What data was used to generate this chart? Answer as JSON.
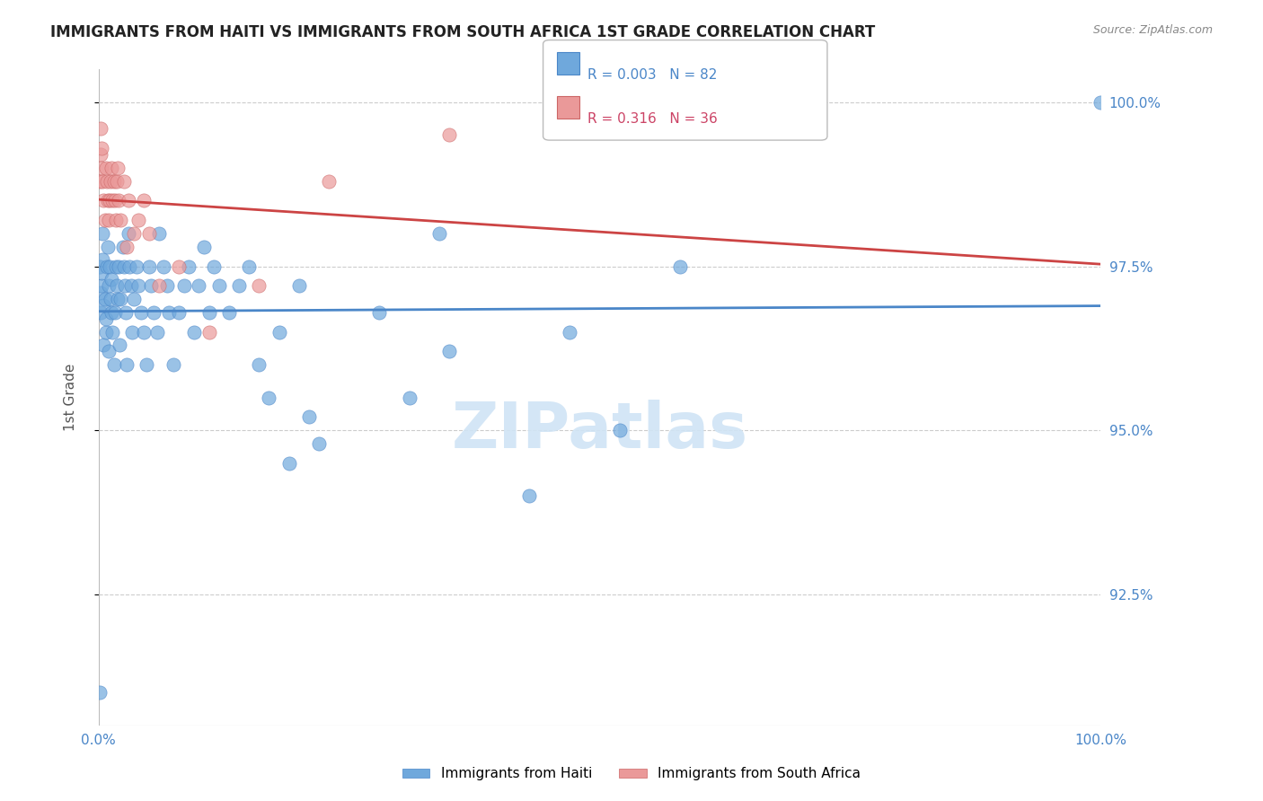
{
  "title": "IMMIGRANTS FROM HAITI VS IMMIGRANTS FROM SOUTH AFRICA 1ST GRADE CORRELATION CHART",
  "source_text": "Source: ZipAtlas.com",
  "ylabel": "1st Grade",
  "x_tick_labels": [
    "0.0%",
    "100.0%"
  ],
  "y_tick_labels_right": [
    "100.0%",
    "97.5%",
    "95.0%",
    "92.5%"
  ],
  "y_tick_values_right": [
    1.0,
    0.975,
    0.95,
    0.925
  ],
  "legend_haiti": "Immigrants from Haiti",
  "legend_sa": "Immigrants from South Africa",
  "r_haiti": "0.003",
  "n_haiti": "82",
  "r_sa": "0.316",
  "n_sa": "36",
  "xlim": [
    0.0,
    1.0
  ],
  "ylim": [
    0.905,
    1.005
  ],
  "blue_color": "#6fa8dc",
  "pink_color": "#ea9999",
  "trendline_blue": "#4a86c8",
  "trendline_pink": "#cc4444",
  "watermark_color": "#d0e4f5",
  "title_color": "#222222",
  "axis_label_color": "#555555",
  "right_tick_color": "#4a86c8",
  "grid_color": "#cccccc",
  "background_color": "#ffffff",
  "haiti_x": [
    0.001,
    0.002,
    0.002,
    0.003,
    0.003,
    0.004,
    0.004,
    0.005,
    0.005,
    0.006,
    0.007,
    0.007,
    0.008,
    0.009,
    0.01,
    0.01,
    0.011,
    0.012,
    0.013,
    0.013,
    0.014,
    0.015,
    0.016,
    0.017,
    0.018,
    0.019,
    0.02,
    0.021,
    0.022,
    0.024,
    0.025,
    0.026,
    0.027,
    0.028,
    0.03,
    0.031,
    0.032,
    0.033,
    0.035,
    0.038,
    0.04,
    0.042,
    0.045,
    0.048,
    0.05,
    0.052,
    0.055,
    0.058,
    0.06,
    0.065,
    0.068,
    0.07,
    0.075,
    0.08,
    0.085,
    0.09,
    0.095,
    0.1,
    0.105,
    0.11,
    0.115,
    0.12,
    0.13,
    0.14,
    0.15,
    0.16,
    0.17,
    0.18,
    0.19,
    0.2,
    0.21,
    0.22,
    0.28,
    0.31,
    0.35,
    0.43,
    0.47,
    0.52,
    0.58,
    0.001,
    0.34,
    1.0
  ],
  "haiti_y": [
    0.975,
    0.968,
    0.971,
    0.972,
    0.974,
    0.976,
    0.98,
    0.963,
    0.969,
    0.97,
    0.965,
    0.967,
    0.975,
    0.978,
    0.972,
    0.962,
    0.975,
    0.97,
    0.968,
    0.973,
    0.965,
    0.96,
    0.968,
    0.975,
    0.972,
    0.97,
    0.975,
    0.963,
    0.97,
    0.978,
    0.975,
    0.972,
    0.968,
    0.96,
    0.98,
    0.975,
    0.972,
    0.965,
    0.97,
    0.975,
    0.972,
    0.968,
    0.965,
    0.96,
    0.975,
    0.972,
    0.968,
    0.965,
    0.98,
    0.975,
    0.972,
    0.968,
    0.96,
    0.968,
    0.972,
    0.975,
    0.965,
    0.972,
    0.978,
    0.968,
    0.975,
    0.972,
    0.968,
    0.972,
    0.975,
    0.96,
    0.955,
    0.965,
    0.945,
    0.972,
    0.952,
    0.948,
    0.968,
    0.955,
    0.962,
    0.94,
    0.965,
    0.95,
    0.975,
    0.91,
    0.98,
    1.0
  ],
  "sa_x": [
    0.001,
    0.002,
    0.002,
    0.003,
    0.003,
    0.004,
    0.005,
    0.006,
    0.007,
    0.008,
    0.009,
    0.01,
    0.011,
    0.012,
    0.013,
    0.014,
    0.015,
    0.016,
    0.017,
    0.018,
    0.019,
    0.02,
    0.022,
    0.025,
    0.028,
    0.03,
    0.035,
    0.04,
    0.045,
    0.05,
    0.06,
    0.08,
    0.11,
    0.16,
    0.23,
    0.35
  ],
  "sa_y": [
    0.988,
    0.992,
    0.996,
    0.99,
    0.993,
    0.988,
    0.985,
    0.982,
    0.99,
    0.988,
    0.985,
    0.982,
    0.985,
    0.988,
    0.99,
    0.985,
    0.988,
    0.985,
    0.982,
    0.988,
    0.99,
    0.985,
    0.982,
    0.988,
    0.978,
    0.985,
    0.98,
    0.982,
    0.985,
    0.98,
    0.972,
    0.975,
    0.965,
    0.972,
    0.988,
    0.995
  ]
}
